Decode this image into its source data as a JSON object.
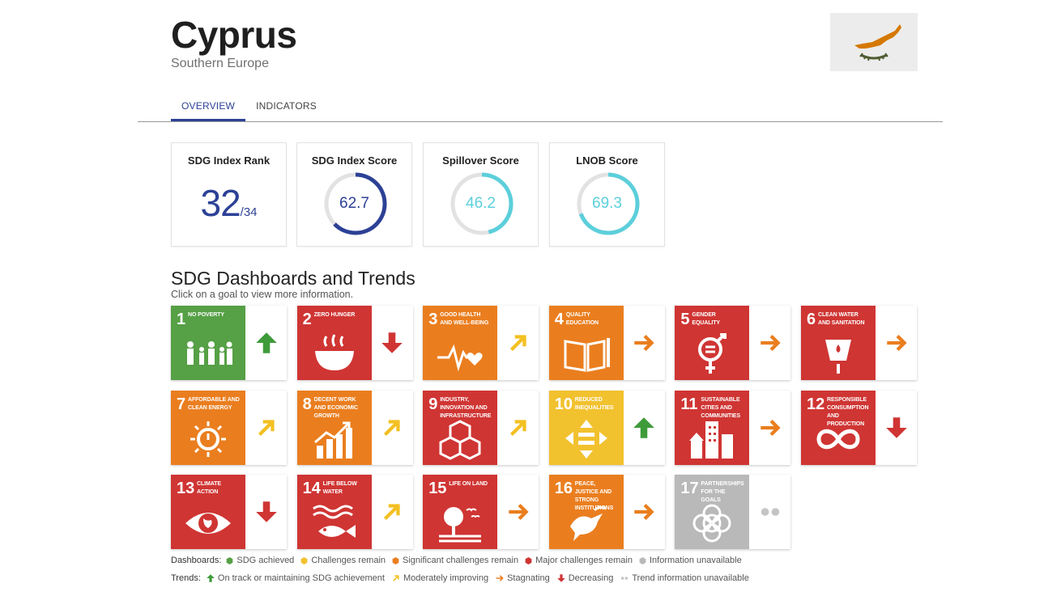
{
  "country": {
    "name": "Cyprus",
    "region": "Southern Europe"
  },
  "tabs": [
    {
      "label": "OVERVIEW",
      "active": true
    },
    {
      "label": "INDICATORS",
      "active": false
    }
  ],
  "scores": {
    "rank": {
      "title": "SDG Index Rank",
      "value": "32",
      "total": "/34"
    },
    "index": {
      "title": "SDG Index Score",
      "value": "62.7",
      "percent": 62.7,
      "color": "#2c4196"
    },
    "spillover": {
      "title": "Spillover Score",
      "value": "46.2",
      "percent": 46.2,
      "color": "#5ccfdb"
    },
    "lnob": {
      "title": "LNOB Score",
      "value": "69.3",
      "percent": 69.3,
      "color": "#5ccfdb"
    }
  },
  "section": {
    "title": "SDG Dashboards and Trends",
    "subtitle": "Click on a goal to view more information."
  },
  "colors": {
    "green": "#56a046",
    "yellow": "#f2c12e",
    "orange": "#ea7e1f",
    "red": "#cf3533",
    "grey": "#b9b9b9",
    "arrow_green": "#3f9b3a",
    "arrow_yellow": "#f3c021",
    "arrow_orange": "#ea7e1f",
    "arrow_red": "#cf3533",
    "dots_grey": "#c4c4c4"
  },
  "goals": [
    {
      "num": "1",
      "label": "No Poverty",
      "dashboard": "green",
      "trend": "up",
      "icon": "family-icon"
    },
    {
      "num": "2",
      "label": "Zero Hunger",
      "dashboard": "red",
      "trend": "down",
      "icon": "bowl-icon"
    },
    {
      "num": "3",
      "label": "Good Health and Well-Being",
      "dashboard": "orange",
      "trend": "moderate",
      "icon": "heartbeat-icon"
    },
    {
      "num": "4",
      "label": "Quality Education",
      "dashboard": "orange",
      "trend": "flat",
      "icon": "book-icon"
    },
    {
      "num": "5",
      "label": "Gender Equality",
      "dashboard": "red",
      "trend": "flat",
      "icon": "gender-icon"
    },
    {
      "num": "6",
      "label": "Clean Water and Sanitation",
      "dashboard": "red",
      "trend": "flat",
      "icon": "water-icon"
    },
    {
      "num": "7",
      "label": "Affordable and Clean Energy",
      "dashboard": "orange",
      "trend": "moderate",
      "icon": "sun-power-icon"
    },
    {
      "num": "8",
      "label": "Decent Work and Economic Growth",
      "dashboard": "orange",
      "trend": "moderate",
      "icon": "growth-chart-icon"
    },
    {
      "num": "9",
      "label": "Industry, Innovation and Infrastructure",
      "dashboard": "red",
      "trend": "moderate",
      "icon": "cubes-icon"
    },
    {
      "num": "10",
      "label": "Reduced Inequalities",
      "dashboard": "yellow",
      "trend": "up",
      "icon": "equal-arrows-icon"
    },
    {
      "num": "11",
      "label": "Sustainable Cities and Communities",
      "dashboard": "red",
      "trend": "flat",
      "icon": "city-icon"
    },
    {
      "num": "12",
      "label": "Responsible Consumption and Production",
      "dashboard": "red",
      "trend": "down",
      "icon": "infinity-icon"
    },
    {
      "num": "13",
      "label": "Climate Action",
      "dashboard": "red",
      "trend": "down",
      "icon": "eye-globe-icon"
    },
    {
      "num": "14",
      "label": "Life Below Water",
      "dashboard": "red",
      "trend": "moderate",
      "icon": "fish-icon"
    },
    {
      "num": "15",
      "label": "Life on Land",
      "dashboard": "red",
      "trend": "flat",
      "icon": "tree-icon"
    },
    {
      "num": "16",
      "label": "Peace, Justice and Strong Institutions",
      "dashboard": "orange",
      "trend": "flat",
      "icon": "dove-icon"
    },
    {
      "num": "17",
      "label": "Partnerships for the Goals",
      "dashboard": "grey",
      "trend": "na",
      "icon": "rings-icon"
    }
  ],
  "legend": {
    "dashboards_title": "Dashboards:",
    "dashboards": [
      {
        "label": "SDG achieved",
        "color": "green"
      },
      {
        "label": "Challenges remain",
        "color": "yellow"
      },
      {
        "label": "Significant challenges remain",
        "color": "orange"
      },
      {
        "label": "Major challenges remain",
        "color": "red"
      },
      {
        "label": "Information unavailable",
        "color": "grey"
      }
    ],
    "trends_title": "Trends:",
    "trends": [
      {
        "label": "On track or maintaining SDG achievement",
        "trend": "up"
      },
      {
        "label": "Moderately improving",
        "trend": "moderate"
      },
      {
        "label": "Stagnating",
        "trend": "flat"
      },
      {
        "label": "Decreasing",
        "trend": "down"
      },
      {
        "label": "Trend information unavailable",
        "trend": "na"
      }
    ]
  }
}
